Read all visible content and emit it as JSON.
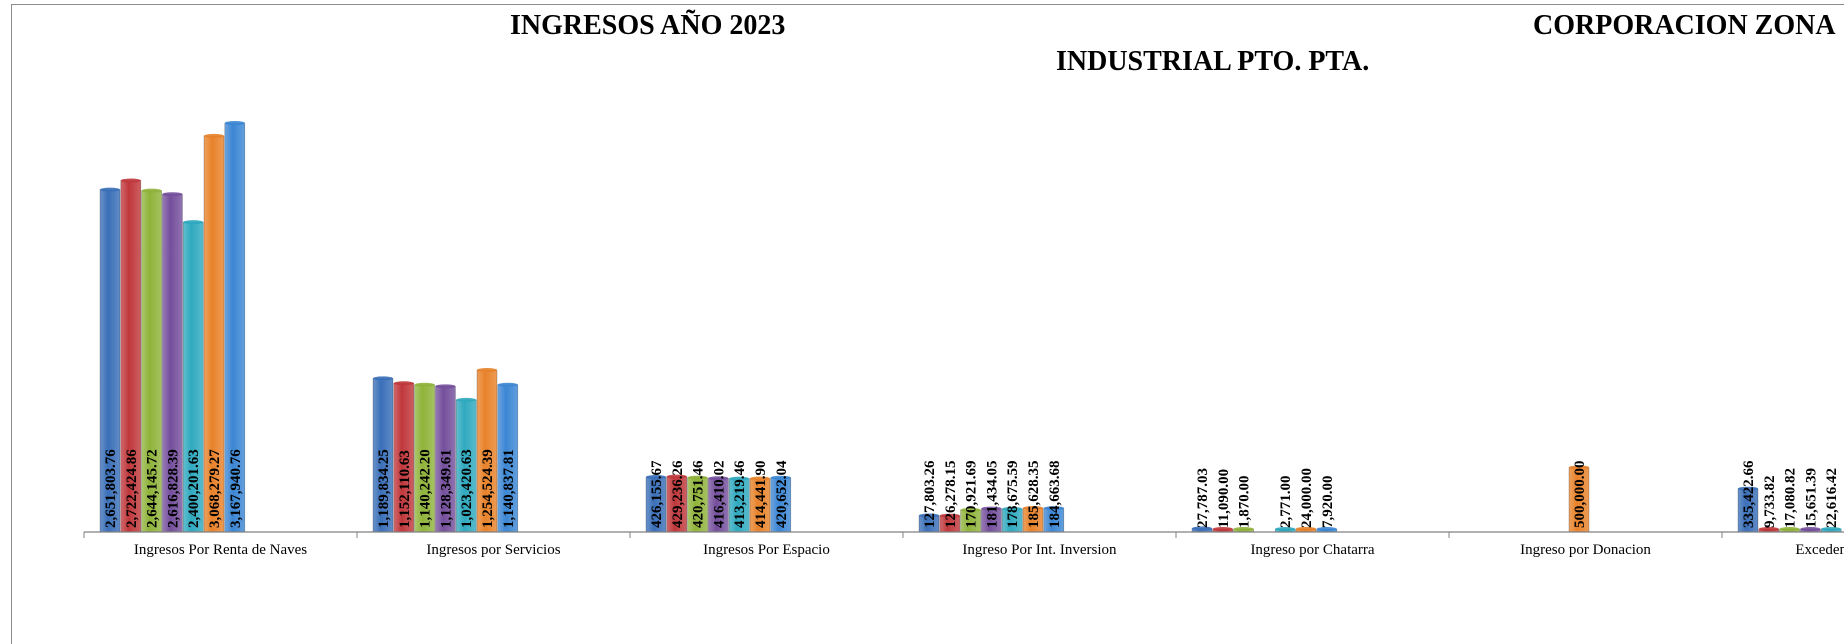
{
  "title_parts": {
    "left": "INGRESOS AÑO 2023",
    "right_line1": "CORPORACION ZONA",
    "right_line2": "INDUSTRIAL PTO. PTA."
  },
  "colors": {
    "series": [
      "#3a6fb8",
      "#c0373b",
      "#8fb33a",
      "#744f9c",
      "#2fa9bf",
      "#e8822a",
      "#3b86d4"
    ]
  },
  "chart_data": {
    "type": "bar",
    "title": "INGRESOS AÑO 2023 — CORPORACION ZONA INDUSTRIAL PTO. PTA.",
    "categories": [
      "Ingresos Por Renta de Naves",
      "Ingresos por Servicios",
      "Ingresos Por Espacio",
      "Ingreso Por Int. Inversion",
      "Ingreso por Chatarra",
      "Ingreso por Donacion",
      "Excedente Depósitos"
    ],
    "series": [
      {
        "values": [
          2651803.76,
          1189834.25,
          426155.67,
          127803.26,
          27787.03,
          0,
          335422.66
        ],
        "labels": [
          "2,651,803.76",
          "1,189,834.25",
          "426,155.67",
          "127,803.26",
          "27,787.03",
          "",
          "335,422.66"
        ]
      },
      {
        "values": [
          2722424.86,
          1152110.63,
          429236.26,
          126278.15,
          11090.0,
          0,
          9733.82
        ],
        "labels": [
          "2,722,424.86",
          "1,152,110.63",
          "429,236.26",
          "126,278.15",
          "11,090.00",
          "",
          "9,733.82"
        ]
      },
      {
        "values": [
          2644145.72,
          1140242.2,
          420751.46,
          170921.69,
          1870.0,
          0,
          17080.82
        ],
        "labels": [
          "2,644,145.72",
          "1,140,242.20",
          "420,751.46",
          "170,921.69",
          "1,870.00",
          "",
          "17,080.82"
        ]
      },
      {
        "values": [
          2616828.39,
          1128349.61,
          416410.02,
          181434.05,
          0,
          0,
          15651.39
        ],
        "labels": [
          "2,616,828.39",
          "1,128,349.61",
          "416,410.02",
          "181,434.05",
          "",
          "",
          "15,651.39"
        ]
      },
      {
        "values": [
          2400201.63,
          1023420.63,
          413219.46,
          178675.59,
          2771.0,
          0,
          22616.42
        ],
        "labels": [
          "2,400,201.63",
          "1,023,420.63",
          "413,219.46",
          "178,675.59",
          "2,771.00",
          "",
          "22,616.42"
        ]
      },
      {
        "values": [
          3068279.27,
          1254524.39,
          414441.9,
          185628.35,
          24000.0,
          500000.0,
          0
        ],
        "labels": [
          "3,068,279.27",
          "1,254,524.39",
          "414,441.90",
          "185,628.35",
          "24,000.00",
          "500,000.00",
          ""
        ]
      },
      {
        "values": [
          3167940.76,
          1140837.81,
          420652.04,
          184663.68,
          7920.0,
          0,
          0
        ],
        "labels": [
          "3,167,940.76",
          "1,140,837.81",
          "420,652.04",
          "184,663.68",
          "7,920.00",
          "",
          ""
        ]
      }
    ],
    "ylim": [
      0,
      3300000
    ],
    "grid": false,
    "legend": "none",
    "data_labels": "vertical, inside bar"
  }
}
